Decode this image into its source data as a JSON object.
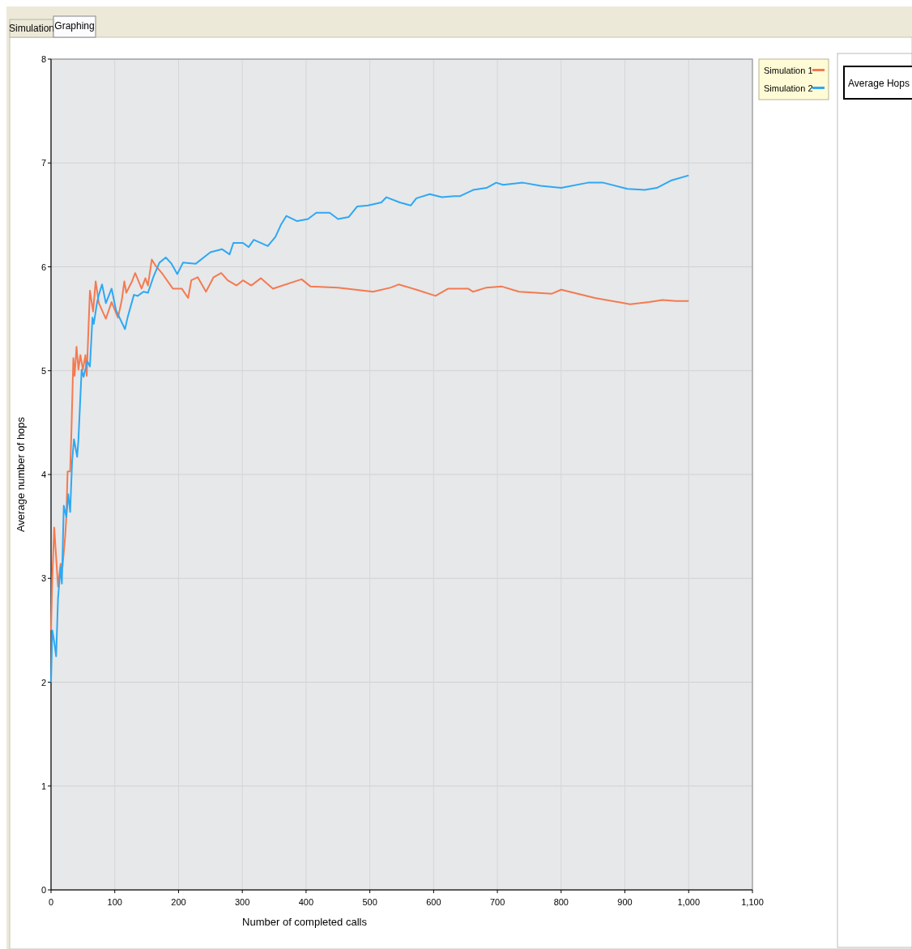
{
  "chart_data": {
    "type": "line",
    "xlabel": "Number of completed calls",
    "ylabel": "Average number of hops",
    "xlim": [
      0,
      1100
    ],
    "ylim": [
      0,
      8
    ],
    "xticks": [
      0,
      100,
      200,
      300,
      400,
      500,
      600,
      700,
      800,
      900,
      {
        "value": 1000,
        "label": "1,000"
      },
      {
        "value": 1100,
        "label": "1,100"
      }
    ],
    "yticks": [
      0,
      1,
      2,
      3,
      4,
      5,
      6,
      7,
      8
    ],
    "grid": true,
    "legend": "top right",
    "marker": "none",
    "line_style": "solid",
    "annotations": [
      "Simulation",
      "Graphing",
      "Average Hops"
    ],
    "series": [
      {
        "name": "Simulation 1",
        "color": "#f47a50",
        "x": [
          0,
          2,
          5,
          11,
          15,
          18,
          22,
          24,
          26,
          30,
          32,
          35,
          37,
          40,
          43,
          46,
          50,
          54,
          56,
          59,
          61,
          66,
          70,
          75,
          86,
          95,
          105,
          111,
          115,
          118,
          127,
          132,
          142,
          148,
          152,
          158,
          164,
          175,
          191,
          205,
          215,
          220,
          230,
          243,
          255,
          267,
          277,
          291,
          301,
          314,
          329,
          348,
          393,
          407,
          450,
          505,
          533,
          545,
          573,
          603,
          623,
          654,
          662,
          683,
          707,
          734,
          785,
          800,
          853,
          908,
          938,
          959,
          980,
          1000
        ],
        "values": [
          2.5,
          3.0,
          3.49,
          2.92,
          3.14,
          3.11,
          3.39,
          3.59,
          4.03,
          4.03,
          4.42,
          5.12,
          4.95,
          5.23,
          5.01,
          5.15,
          5.01,
          5.15,
          4.95,
          5.45,
          5.77,
          5.57,
          5.86,
          5.65,
          5.5,
          5.66,
          5.51,
          5.68,
          5.86,
          5.75,
          5.86,
          5.94,
          5.79,
          5.89,
          5.82,
          6.07,
          6.01,
          5.93,
          5.79,
          5.79,
          5.7,
          5.87,
          5.9,
          5.76,
          5.9,
          5.94,
          5.87,
          5.82,
          5.87,
          5.82,
          5.89,
          5.79,
          5.88,
          5.81,
          5.8,
          5.76,
          5.8,
          5.83,
          5.78,
          5.72,
          5.79,
          5.79,
          5.76,
          5.8,
          5.81,
          5.76,
          5.74,
          5.78,
          5.7,
          5.64,
          5.66,
          5.68,
          5.67,
          5.67
        ]
      },
      {
        "name": "Simulation 2",
        "color": "#2ea8f2",
        "x": [
          0,
          2,
          5,
          8,
          11,
          15,
          17,
          20,
          24,
          27,
          30,
          33,
          36,
          41,
          43,
          48,
          51,
          57,
          61,
          65,
          67,
          72,
          75,
          80,
          86,
          95,
          102,
          116,
          120,
          130,
          136,
          145,
          152,
          161,
          170,
          180,
          189,
          198,
          207,
          227,
          250,
          268,
          280,
          286,
          301,
          310,
          318,
          340,
          352,
          361,
          369,
          386,
          403,
          416,
          437,
          450,
          467,
          480,
          497,
          518,
          526,
          547,
          564,
          573,
          594,
          613,
          632,
          641,
          662,
          683,
          698,
          709,
          740,
          768,
          800,
          842,
          866,
          904,
          931,
          950,
          972,
          1000
        ],
        "values": [
          2.0,
          2.5,
          2.39,
          2.25,
          2.81,
          3.11,
          2.95,
          3.7,
          3.59,
          3.81,
          3.64,
          4.12,
          4.34,
          4.17,
          4.34,
          5.01,
          4.94,
          5.09,
          5.04,
          5.51,
          5.45,
          5.65,
          5.73,
          5.83,
          5.65,
          5.79,
          5.58,
          5.4,
          5.51,
          5.73,
          5.72,
          5.76,
          5.75,
          5.91,
          6.04,
          6.09,
          6.03,
          5.93,
          6.04,
          6.03,
          6.14,
          6.17,
          6.12,
          6.23,
          6.23,
          6.19,
          6.26,
          6.2,
          6.29,
          6.41,
          6.49,
          6.44,
          6.46,
          6.52,
          6.52,
          6.46,
          6.48,
          6.58,
          6.59,
          6.62,
          6.67,
          6.62,
          6.59,
          6.66,
          6.7,
          6.67,
          6.68,
          6.68,
          6.74,
          6.76,
          6.81,
          6.79,
          6.81,
          6.78,
          6.76,
          6.81,
          6.81,
          6.75,
          6.74,
          6.76,
          6.83,
          6.88
        ]
      }
    ]
  }
}
